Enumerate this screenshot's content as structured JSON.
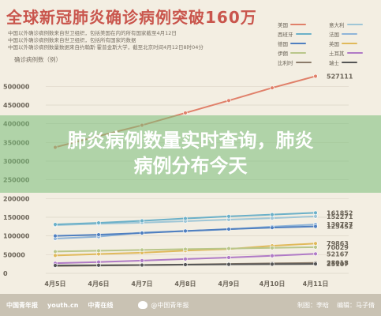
{
  "title": "全球新冠肺炎确诊病例突破160万",
  "notes": [
    "中国以外确诊病例数来自世卫组织，包括美国在内的所有国家截至4月12日",
    "中国以外确诊病例数来自世卫组织，包括所有国家的数据",
    "中国以外确诊病例数量数据来自约翰斯·霍普金斯大学，截至北京时间4月12日8时04分"
  ],
  "colors": {
    "background": "#f3eee2",
    "title": "#c9554c",
    "overlay": "rgba(120,190,120,0.55)",
    "footer": "#c9c2b3"
  },
  "headline": {
    "line1": "肺炎病例数量实时查询，肺炎",
    "line2": "病例分布今天"
  },
  "footer": {
    "logo_a": "中国青年报",
    "logo_b": "youth.cn",
    "logo_c": "中青在线",
    "weibo_icon": "weibo-icon",
    "source": "@中国青年报",
    "producer": "制图：李晗",
    "editor": "编辑：马子倩"
  },
  "chart_data": {
    "type": "line",
    "ylabel": "确诊病例数（例）",
    "x": [
      "4月5日",
      "4月6日",
      "4月7日",
      "4月8日",
      "4月9日",
      "4月10日",
      "4月11日"
    ],
    "yticks": [
      0,
      50000,
      100000,
      150000,
      200000,
      250000,
      300000,
      350000,
      400000,
      450000,
      500000
    ],
    "ylim": [
      0,
      545000
    ],
    "grid": true,
    "legend_position": "top-right",
    "series": [
      {
        "name": "美国",
        "color": "#e0806a",
        "values": [
          337000,
          367000,
          396000,
          429000,
          462000,
          496000,
          527111
        ],
        "end_label": "527111"
      },
      {
        "name": "意大利",
        "color": "#9fc6d6",
        "values": [
          128948,
          132547,
          135586,
          139422,
          143626,
          147577,
          152271
        ],
        "end_label": "152271"
      },
      {
        "name": "西班牙",
        "color": "#6bb0c8",
        "values": [
          130759,
          135032,
          140510,
          146690,
          152446,
          157022,
          161852
        ],
        "end_label": "161852"
      },
      {
        "name": "法国",
        "color": "#8fb4d8",
        "values": [
          92839,
          98010,
          109069,
          112950,
          117749,
          124869,
          130727
        ],
        "end_label": "130727"
      },
      {
        "name": "德国",
        "color": "#4f7fc0",
        "values": [
          100123,
          103374,
          107663,
          113296,
          118181,
          122171,
          125452
        ],
        "end_label": "125452"
      },
      {
        "name": "英国",
        "color": "#e0b95a",
        "values": [
          47806,
          51608,
          55242,
          60733,
          65077,
          73758,
          79863
        ],
        "end_label": "79863"
      },
      {
        "name": "伊朗",
        "color": "#b9c68a",
        "values": [
          58226,
          60500,
          62589,
          64586,
          66220,
          68192,
          70029
        ],
        "end_label": "70029"
      },
      {
        "name": "土耳其",
        "color": "#b07ac6",
        "values": [
          27069,
          30217,
          34109,
          38226,
          42282,
          47029,
          52167
        ],
        "end_label": "52167"
      },
      {
        "name": "比利时",
        "color": "#8b7b6a",
        "values": [
          19691,
          20814,
          22194,
          23403,
          24983,
          26667,
          28018
        ],
        "end_label": "28018"
      },
      {
        "name": "瑞士",
        "color": "#555555",
        "values": [
          21100,
          21657,
          22253,
          23280,
          24051,
          24551,
          25107
        ],
        "end_label": "25107"
      }
    ]
  }
}
